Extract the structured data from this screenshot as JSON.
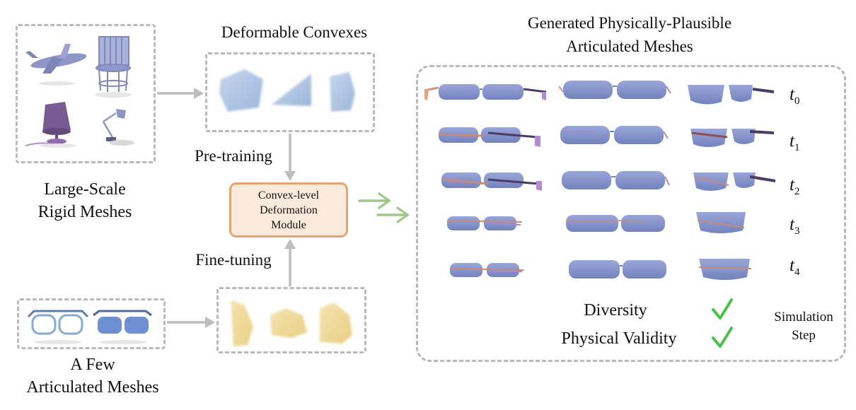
{
  "labels": {
    "large_scale": "Large-Scale\nRigid Meshes",
    "few_articulated": "A Few\nArticulated Meshes",
    "deformable_convexes": "Deformable Convexes",
    "pre_training": "Pre-training",
    "fine_tuning": "Fine-tuning",
    "module": "Convex-level\nDeformation\nModule",
    "generated_title": "Generated Physically-Plausible\nArticulated Meshes",
    "diversity": "Diversity",
    "physical_validity": "Physical Validity",
    "simulation_step": "Simulation\nStep"
  },
  "time_steps": [
    {
      "base": "t",
      "sub": "0"
    },
    {
      "base": "t",
      "sub": "1"
    },
    {
      "base": "t",
      "sub": "2"
    },
    {
      "base": "t",
      "sub": "3"
    },
    {
      "base": "t",
      "sub": "4"
    }
  ],
  "icons": {
    "checkmark": "check-icon",
    "rigid_meshes": [
      "airplane-icon",
      "chair-icon",
      "lamp-icon",
      "desk-lamp-icon"
    ],
    "articulated_meshes": [
      "glasses-icon",
      "sunglasses-icon"
    ]
  },
  "colors": {
    "dash": "#b9b9b9",
    "arrow_gray": "#bdbdbd",
    "arrow_green": "#9fc98a",
    "module_border": "#e3a574",
    "module_fill": "#fcebdc",
    "lens_blue": "#8592c8",
    "convex_blue": "#b4c8e4",
    "convex_yellow": "#f0d89a",
    "check_green": "#4cbf4a"
  }
}
